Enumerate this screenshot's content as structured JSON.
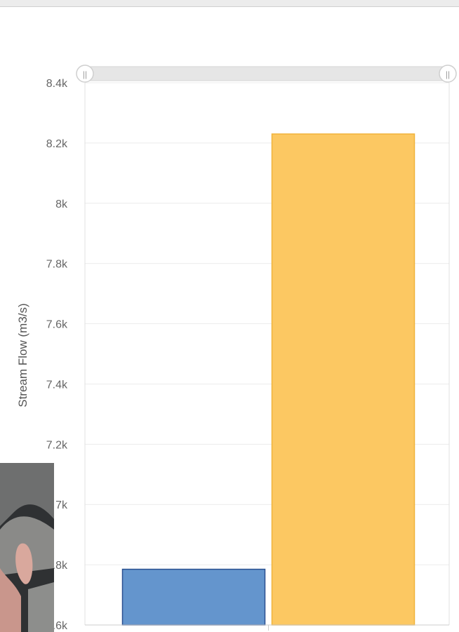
{
  "chart_data": {
    "type": "bar",
    "ylabel": "Stream Flow (m3/s)",
    "ylim": [
      6600,
      8400
    ],
    "yticks": [
      6600,
      6800,
      7000,
      7200,
      7400,
      7600,
      7800,
      8000,
      8200,
      8400
    ],
    "ytick_labels": [
      "6.6k",
      "6.8k",
      "7k",
      "7.2k",
      "7.4k",
      "7.6k",
      "7.8k",
      "8k",
      "8.2k",
      "8.4k"
    ],
    "grid": true,
    "series": [
      {
        "values": [
          6785
        ],
        "color": "#6495cd",
        "border": "#2a4f8f"
      },
      {
        "values": [
          8230
        ],
        "color": "#fcc862",
        "border": "#f0b33a"
      }
    ]
  },
  "range_slider": {
    "handle_glyph": "||"
  },
  "colors": {
    "grid": "#ececec",
    "axis": "#cccccc",
    "tick_text": "#666666",
    "slider_bg": "#e6e6e6"
  }
}
